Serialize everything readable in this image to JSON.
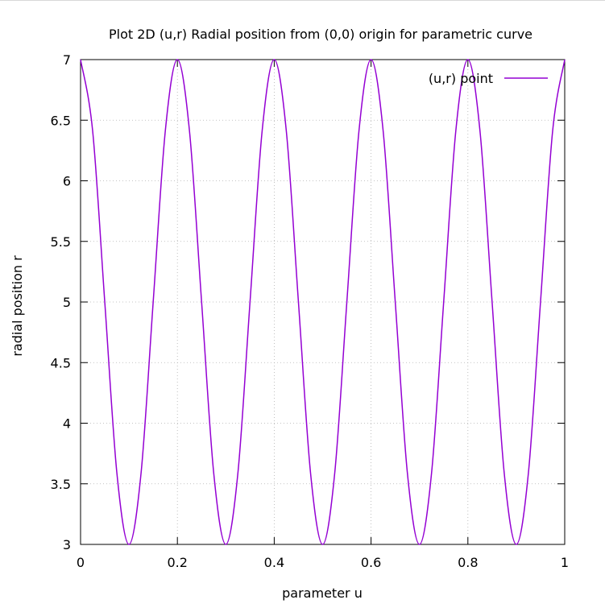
{
  "chart_data": {
    "type": "line",
    "title": "Plot 2D (u,r) Radial position from (0,0) origin for parametric curve",
    "xlabel": "parameter u",
    "ylabel": "radial position r",
    "xlim": [
      0,
      1
    ],
    "ylim": [
      3,
      7
    ],
    "x_ticks": [
      "0",
      "0.2",
      "0.4",
      "0.6",
      "0.8",
      "1"
    ],
    "y_ticks": [
      "3",
      "3.5",
      "4",
      "4.5",
      "5",
      "5.5",
      "6",
      "6.5",
      "7"
    ],
    "grid": true,
    "legend_position": "top-right",
    "series": [
      {
        "name": "(u,r) point",
        "color": "#9400d3",
        "x": [
          0,
          0.025,
          0.05,
          0.075,
          0.1,
          0.125,
          0.15,
          0.175,
          0.2,
          0.225,
          0.25,
          0.275,
          0.3,
          0.325,
          0.35,
          0.375,
          0.4,
          0.425,
          0.45,
          0.475,
          0.5,
          0.525,
          0.55,
          0.575,
          0.6,
          0.625,
          0.65,
          0.675,
          0.7,
          0.725,
          0.75,
          0.775,
          0.8,
          0.825,
          0.85,
          0.875,
          0.9,
          0.925,
          0.95,
          0.975,
          1
        ],
        "y": [
          7,
          6.41,
          5,
          3.59,
          3,
          3.59,
          5,
          6.41,
          7,
          6.41,
          5,
          3.59,
          3,
          3.59,
          5,
          6.41,
          7,
          6.41,
          5,
          3.59,
          3,
          3.59,
          5,
          6.41,
          7,
          6.41,
          5,
          3.59,
          3,
          3.59,
          5,
          6.41,
          7,
          6.41,
          5,
          3.59,
          3,
          3.59,
          5,
          6.41,
          7
        ]
      }
    ]
  }
}
